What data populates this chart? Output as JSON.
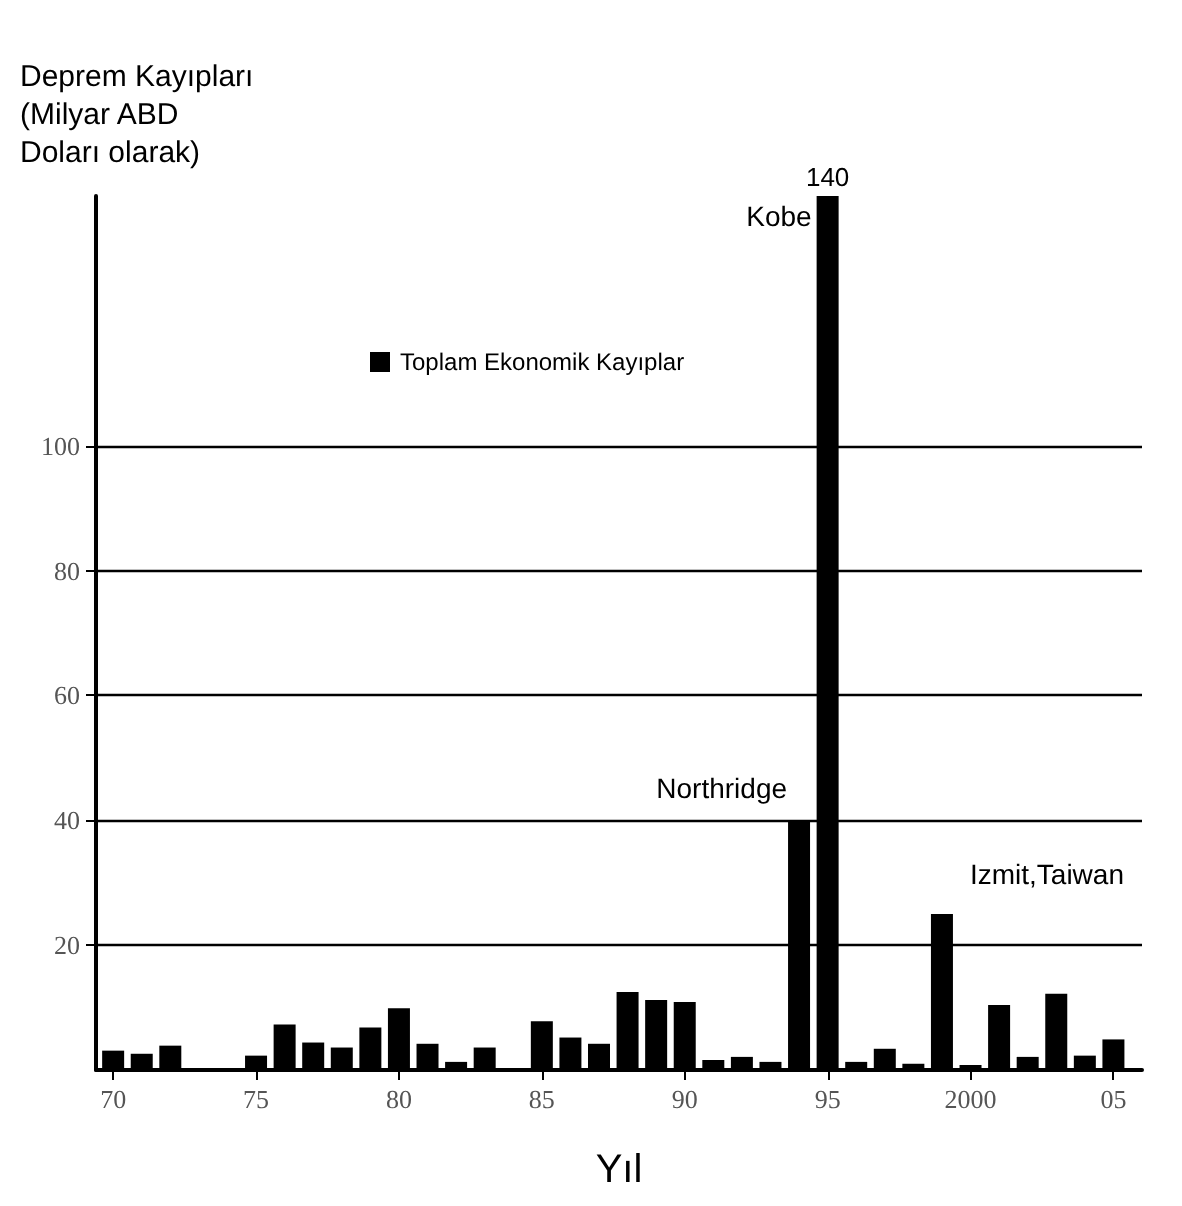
{
  "chart_data": {
    "type": "bar",
    "ylabel": "Deprem Kayıpları (Milyar ABD Doları olarak)",
    "xlabel": "Yıl",
    "x": [
      1970,
      1971,
      1972,
      1973,
      1974,
      1975,
      1976,
      1977,
      1978,
      1979,
      1980,
      1981,
      1982,
      1983,
      1984,
      1985,
      1986,
      1987,
      1988,
      1989,
      1990,
      1991,
      1992,
      1993,
      1994,
      1995,
      1996,
      1997,
      1998,
      1999,
      2000,
      2001,
      2002,
      2003,
      2004,
      2005
    ],
    "series": [
      {
        "name": "Toplam Ekonomik Kayıplar",
        "color": "#000000",
        "values": [
          3.1,
          2.6,
          3.9,
          null,
          null,
          2.3,
          7.3,
          4.4,
          3.6,
          6.8,
          9.9,
          4.2,
          1.3,
          3.6,
          null,
          7.8,
          5.2,
          4.2,
          12.5,
          11.2,
          10.9,
          1.6,
          2.1,
          1.3,
          40,
          140,
          1.3,
          3.4,
          1.0,
          25,
          0.8,
          10.4,
          2.1,
          12.2,
          2.3,
          4.9
        ],
        "value_labels": [
          null,
          null,
          null,
          null,
          null,
          null,
          null,
          null,
          null,
          null,
          null,
          null,
          null,
          null,
          null,
          null,
          null,
          null,
          null,
          null,
          null,
          null,
          null,
          null,
          null,
          "140",
          null,
          null,
          null,
          null,
          null,
          null,
          null,
          null,
          null,
          null
        ]
      }
    ],
    "xlim": [
      1969.4,
      2006
    ],
    "xticks": [
      {
        "value": 1970,
        "label": "70"
      },
      {
        "value": 1975,
        "label": "75"
      },
      {
        "value": 1980,
        "label": "80"
      },
      {
        "value": 1985,
        "label": "85"
      },
      {
        "value": 1990,
        "label": "90"
      },
      {
        "value": 1995,
        "label": "95"
      },
      {
        "value": 2000,
        "label": "2000"
      },
      {
        "value": 2005,
        "label": "05"
      }
    ],
    "ylim": [
      0,
      140
    ],
    "yticks": [
      20,
      40,
      60,
      80,
      100
    ],
    "grid": "y",
    "legend": "top left",
    "annotations": [
      {
        "text": "Kobe",
        "x": 1995,
        "y": 140
      },
      {
        "text": "Northridge",
        "x": 1994,
        "y": 40
      },
      {
        "text": "Izmit,Taiwan",
        "x": 1999,
        "y": 25
      }
    ]
  }
}
